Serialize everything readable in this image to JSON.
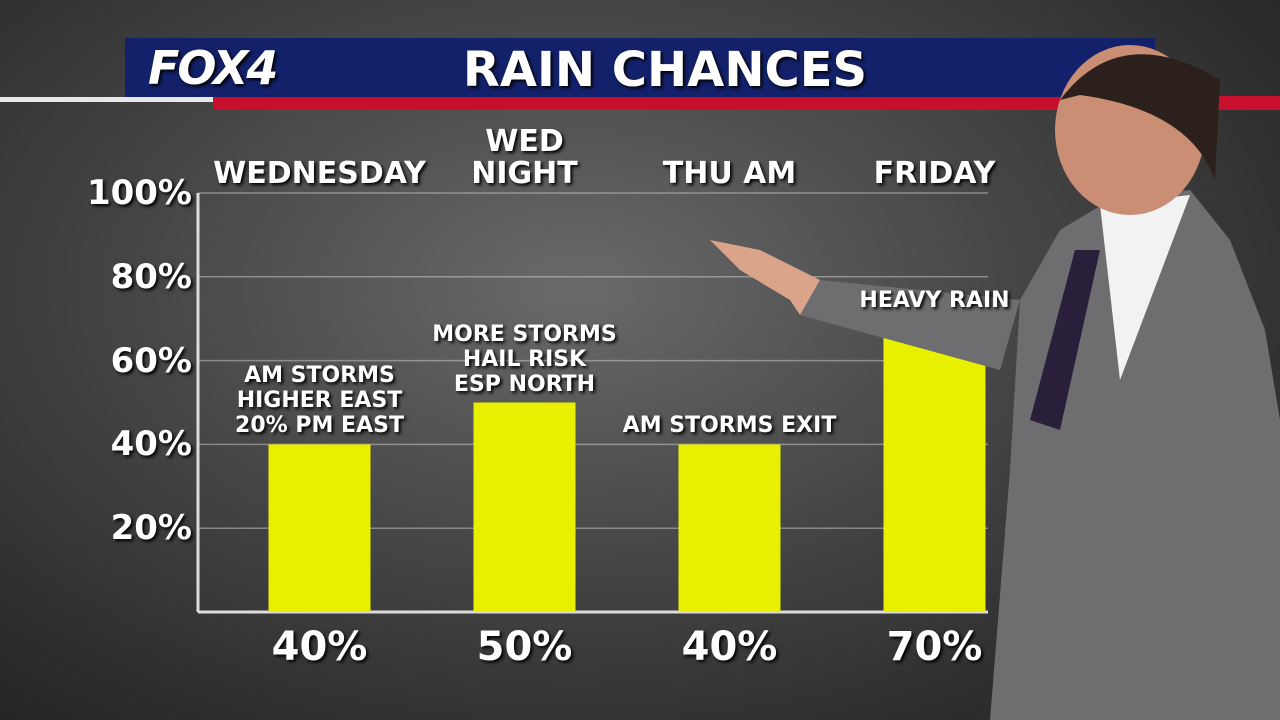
{
  "brand": "FOX4",
  "chart_data": {
    "type": "bar",
    "title": "RAIN CHANCES",
    "categories": [
      "WEDNESDAY",
      "WED\nNIGHT",
      "THU AM",
      "FRIDAY"
    ],
    "values": [
      40,
      50,
      40,
      70
    ],
    "value_labels": [
      "40%",
      "50%",
      "40%",
      "70%"
    ],
    "annotations": [
      [
        "AM STORMS",
        "HIGHER EAST",
        "20% PM EAST"
      ],
      [
        "MORE STORMS",
        "HAIL RISK",
        "ESP NORTH"
      ],
      [
        "AM STORMS EXIT"
      ],
      [
        "HEAVY RAIN"
      ]
    ],
    "color": "#e8f000",
    "ylim": [
      0,
      100
    ],
    "yticks": [
      {
        "value": 20,
        "label": "20%"
      },
      {
        "value": 40,
        "label": "40%"
      },
      {
        "value": 60,
        "label": "60%"
      },
      {
        "value": 80,
        "label": "80%"
      },
      {
        "value": 100,
        "label": "100%"
      }
    ],
    "grid": true
  }
}
